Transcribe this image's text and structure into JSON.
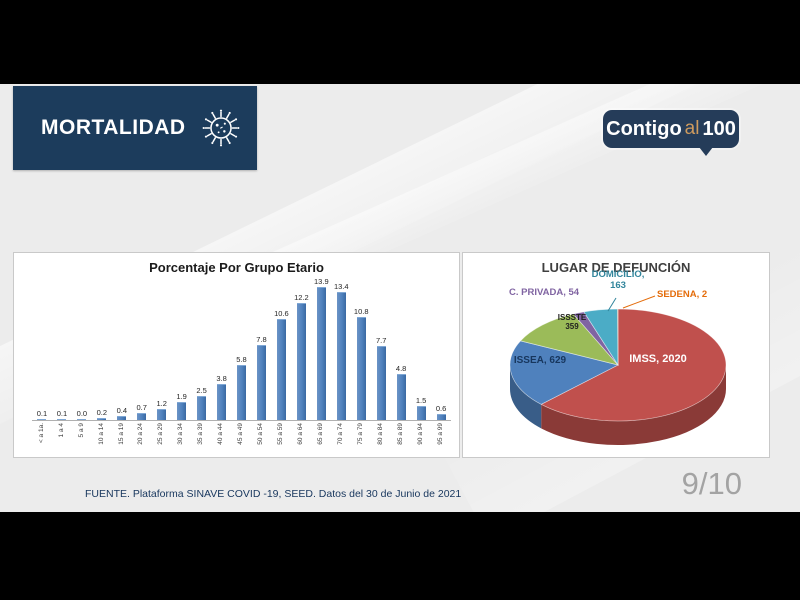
{
  "header": {
    "title": "MORTALIDAD",
    "icon": "virus-icon",
    "accent_navy": "#1c3c5c",
    "logo": {
      "part1": "Contigo",
      "part2": "al",
      "part3": "100",
      "accent_orange": "#cf9b5e"
    }
  },
  "footer": {
    "source": "FUENTE. Plataforma SINAVE COVID -19, SEED. Datos del 30 de Junio de 2021"
  },
  "frame": {
    "page_indicator": "9/10"
  },
  "chart_data": [
    {
      "type": "bar",
      "title": "Porcentaje Por Grupo Etario",
      "categories": [
        "< a 1a.",
        "1 a 4",
        "5 a 9",
        "10 a 14",
        "15 a 19",
        "20 a 24",
        "25 a 29",
        "30 a 34",
        "35 a 39",
        "40 a 44",
        "45 a 49",
        "50 a 54",
        "55 a 59",
        "60 a 64",
        "65 a 69",
        "70 a 74",
        "75 a 79",
        "80 a 84",
        "85 a 89",
        "90 a 94",
        "95 a 99"
      ],
      "values": [
        0.1,
        0.1,
        0.0,
        0.2,
        0.4,
        0.7,
        1.2,
        1.9,
        2.5,
        3.8,
        5.8,
        7.8,
        10.6,
        12.2,
        13.9,
        13.4,
        10.8,
        7.7,
        4.8,
        1.5,
        0.6
      ],
      "xlabel": "",
      "ylabel": "",
      "ylim": [
        0,
        14
      ],
      "grid": false,
      "legend": "none",
      "data_labels": true,
      "bar_color": "#4f81bd",
      "effect": "3d-columns"
    },
    {
      "type": "pie",
      "title": "LUGAR DE DEFUNCIÓN",
      "effect": "3d",
      "legend": "none",
      "total": 3227,
      "series": [
        {
          "name": "IMSS",
          "value": 2020,
          "label": "IMSS, 2020",
          "color": "#c0504d",
          "label_color": "#ffffff"
        },
        {
          "name": "ISSEA",
          "value": 629,
          "label": "ISSEA, 629",
          "color": "#4f81bd",
          "label_color": "#17365d"
        },
        {
          "name": "ISSSTE",
          "value": 359,
          "label": "ISSSTE\n359",
          "color": "#9bbb59",
          "label_color": "#1f1f1f"
        },
        {
          "name": "C. PRIVADA",
          "value": 54,
          "label": "C. PRIVADA, 54",
          "color": "#8064a2",
          "label_color": "#8064a2"
        },
        {
          "name": "DOMICILIO",
          "value": 163,
          "label": "DOMICILIO,\n163",
          "color": "#4bacc6",
          "label_color": "#31859c"
        },
        {
          "name": "SEDENA",
          "value": 2,
          "label": "SEDENA, 2",
          "color": "#f79646",
          "label_color": "#e46c0a"
        }
      ]
    }
  ]
}
